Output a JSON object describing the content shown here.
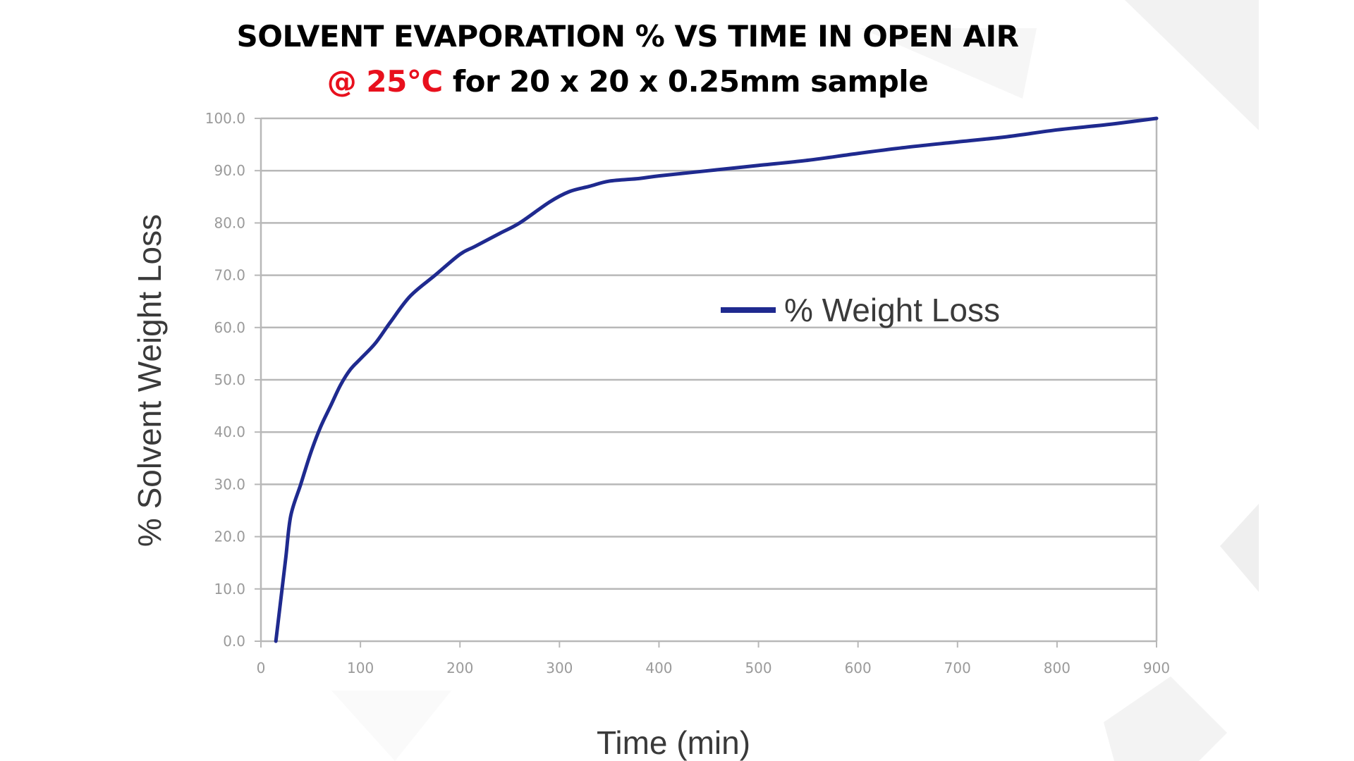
{
  "title": {
    "line1": "SOLVENT EVAPORATION % VS TIME IN OPEN AIR",
    "line2_accent": "@ 25°C",
    "line2_rest": " for 20 x 20 x 0.25mm sample"
  },
  "colors": {
    "series": "#1f2a8f",
    "accent": "#e8101d",
    "grid": "#b8b8b8",
    "tick_text": "#9a9a9a",
    "axis_title": "#3a3a3a"
  },
  "chart_data": {
    "type": "line",
    "title": "SOLVENT EVAPORATION % VS TIME IN OPEN AIR @ 25°C for 20 x 20 x 0.25mm sample",
    "xlabel": "Time (min)",
    "ylabel": "% Solvent Weight Loss",
    "xlim": [
      0,
      900
    ],
    "ylim": [
      0,
      100
    ],
    "x_ticks": [
      "0",
      "100",
      "200",
      "300",
      "400",
      "500",
      "600",
      "700",
      "800",
      "900"
    ],
    "y_ticks": [
      "0.0",
      "10.0",
      "20.0",
      "30.0",
      "40.0",
      "50.0",
      "60.0",
      "70.0",
      "80.0",
      "90.0",
      "100.0"
    ],
    "grid": "horizontal",
    "legend_position": "center-right",
    "series": [
      {
        "name": "% Weight Loss",
        "x": [
          15,
          20,
          25,
          30,
          40,
          50,
          60,
          70,
          80,
          90,
          100,
          115,
          130,
          150,
          175,
          200,
          215,
          240,
          260,
          290,
          310,
          330,
          350,
          380,
          400,
          450,
          500,
          550,
          600,
          650,
          700,
          750,
          800,
          850,
          900
        ],
        "y": [
          0,
          8,
          16,
          24,
          30,
          36,
          41,
          45,
          49,
          52,
          54,
          57,
          61,
          66,
          70,
          74,
          75.5,
          78,
          80,
          84,
          86,
          87,
          88,
          88.5,
          89,
          90,
          91,
          92,
          93.3,
          94.5,
          95.5,
          96.5,
          97.8,
          98.8,
          100
        ]
      }
    ]
  }
}
